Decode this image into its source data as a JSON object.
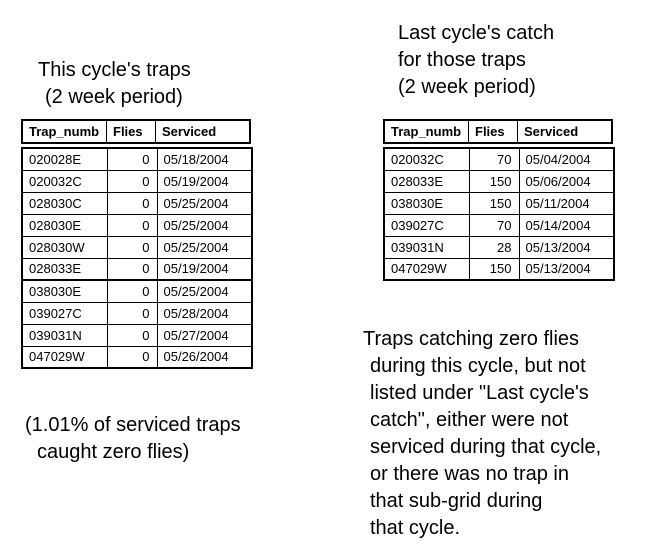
{
  "colors": {
    "text": "#000000",
    "background": "#ffffff",
    "table_border": "#000000"
  },
  "left_panel": {
    "title_lines": [
      "This cycle's traps",
      "(2 week period)"
    ],
    "table": {
      "headers": [
        "Trap_numb",
        "Flies",
        "Serviced"
      ],
      "rows": [
        {
          "trap_number": "020028E",
          "flies": "0",
          "serviced": "05/18/2004"
        },
        {
          "trap_number": "020032C",
          "flies": "0",
          "serviced": "05/19/2004"
        },
        {
          "trap_number": "028030C",
          "flies": "0",
          "serviced": "05/25/2004"
        },
        {
          "trap_number": "028030E",
          "flies": "0",
          "serviced": "05/25/2004"
        },
        {
          "trap_number": "028030W",
          "flies": "0",
          "serviced": "05/25/2004"
        },
        {
          "trap_number": "028033E",
          "flies": "0",
          "serviced": "05/19/2004"
        },
        {
          "trap_number": "038030E",
          "flies": "0",
          "serviced": "05/25/2004"
        },
        {
          "trap_number": "039027C",
          "flies": "0",
          "serviced": "05/28/2004"
        },
        {
          "trap_number": "039031N",
          "flies": "0",
          "serviced": "05/27/2004"
        },
        {
          "trap_number": "047029W",
          "flies": "0",
          "serviced": "05/26/2004"
        }
      ]
    },
    "footnote_lines": [
      "(1.01% of serviced traps",
      "caught zero flies)"
    ]
  },
  "right_panel": {
    "title_lines": [
      "Last cycle's catch",
      "for those traps",
      "(2 week period)"
    ],
    "table": {
      "headers": [
        "Trap_numb",
        "Flies",
        "Serviced"
      ],
      "rows": [
        {
          "trap_number": "020032C",
          "flies": "70",
          "serviced": "05/04/2004"
        },
        {
          "trap_number": "028033E",
          "flies": "150",
          "serviced": "05/06/2004"
        },
        {
          "trap_number": "038030E",
          "flies": "150",
          "serviced": "05/11/2004"
        },
        {
          "trap_number": "039027C",
          "flies": "70",
          "serviced": "05/14/2004"
        },
        {
          "trap_number": "039031N",
          "flies": "28",
          "serviced": "05/13/2004"
        },
        {
          "trap_number": "047029W",
          "flies": "150",
          "serviced": "05/13/2004"
        }
      ]
    },
    "note_lines": [
      "Traps catching zero flies",
      "during this cycle, but not",
      "listed under \"Last cycle's",
      "catch\", either were not",
      "serviced during that cycle,",
      "or there was no trap in",
      "that sub-grid during",
      "that cycle."
    ]
  }
}
